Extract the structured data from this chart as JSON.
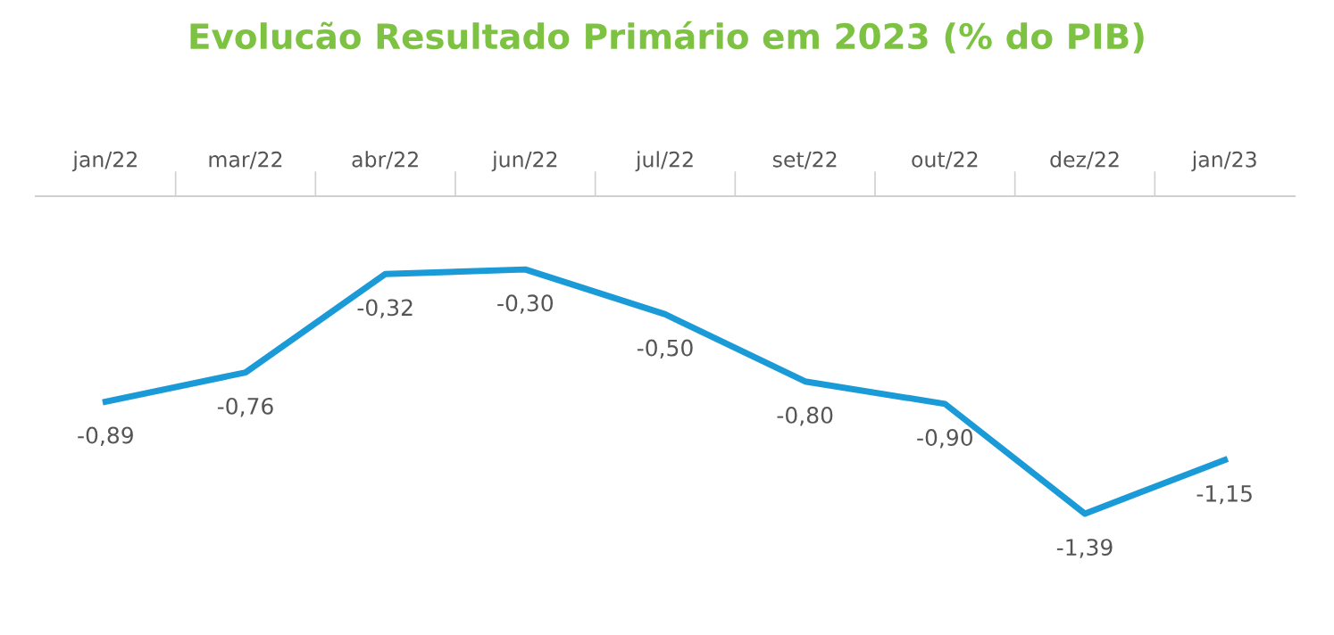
{
  "chart_data": {
    "type": "line",
    "title": "Evolucão Resultado Primário em 2023 (% do PIB)",
    "categories": [
      "jan/22",
      "mar/22",
      "abr/22",
      "jun/22",
      "jul/22",
      "set/22",
      "out/22",
      "dez/22",
      "jan/23"
    ],
    "series": [
      {
        "color": "#1a9ad6",
        "values": [
          -0.89,
          -0.76,
          -0.32,
          -0.3,
          -0.5,
          -0.8,
          -0.9,
          -1.39,
          -1.15
        ],
        "value_labels": [
          "-0,89",
          "-0,76",
          "-0,32",
          "-0,30",
          "-0,50",
          "-0,80",
          "-0,90",
          "-1,39",
          "-1,15"
        ]
      }
    ],
    "tick_labels": "x",
    "grid": false,
    "legend": false,
    "marker": "none",
    "line_style": "solid"
  }
}
